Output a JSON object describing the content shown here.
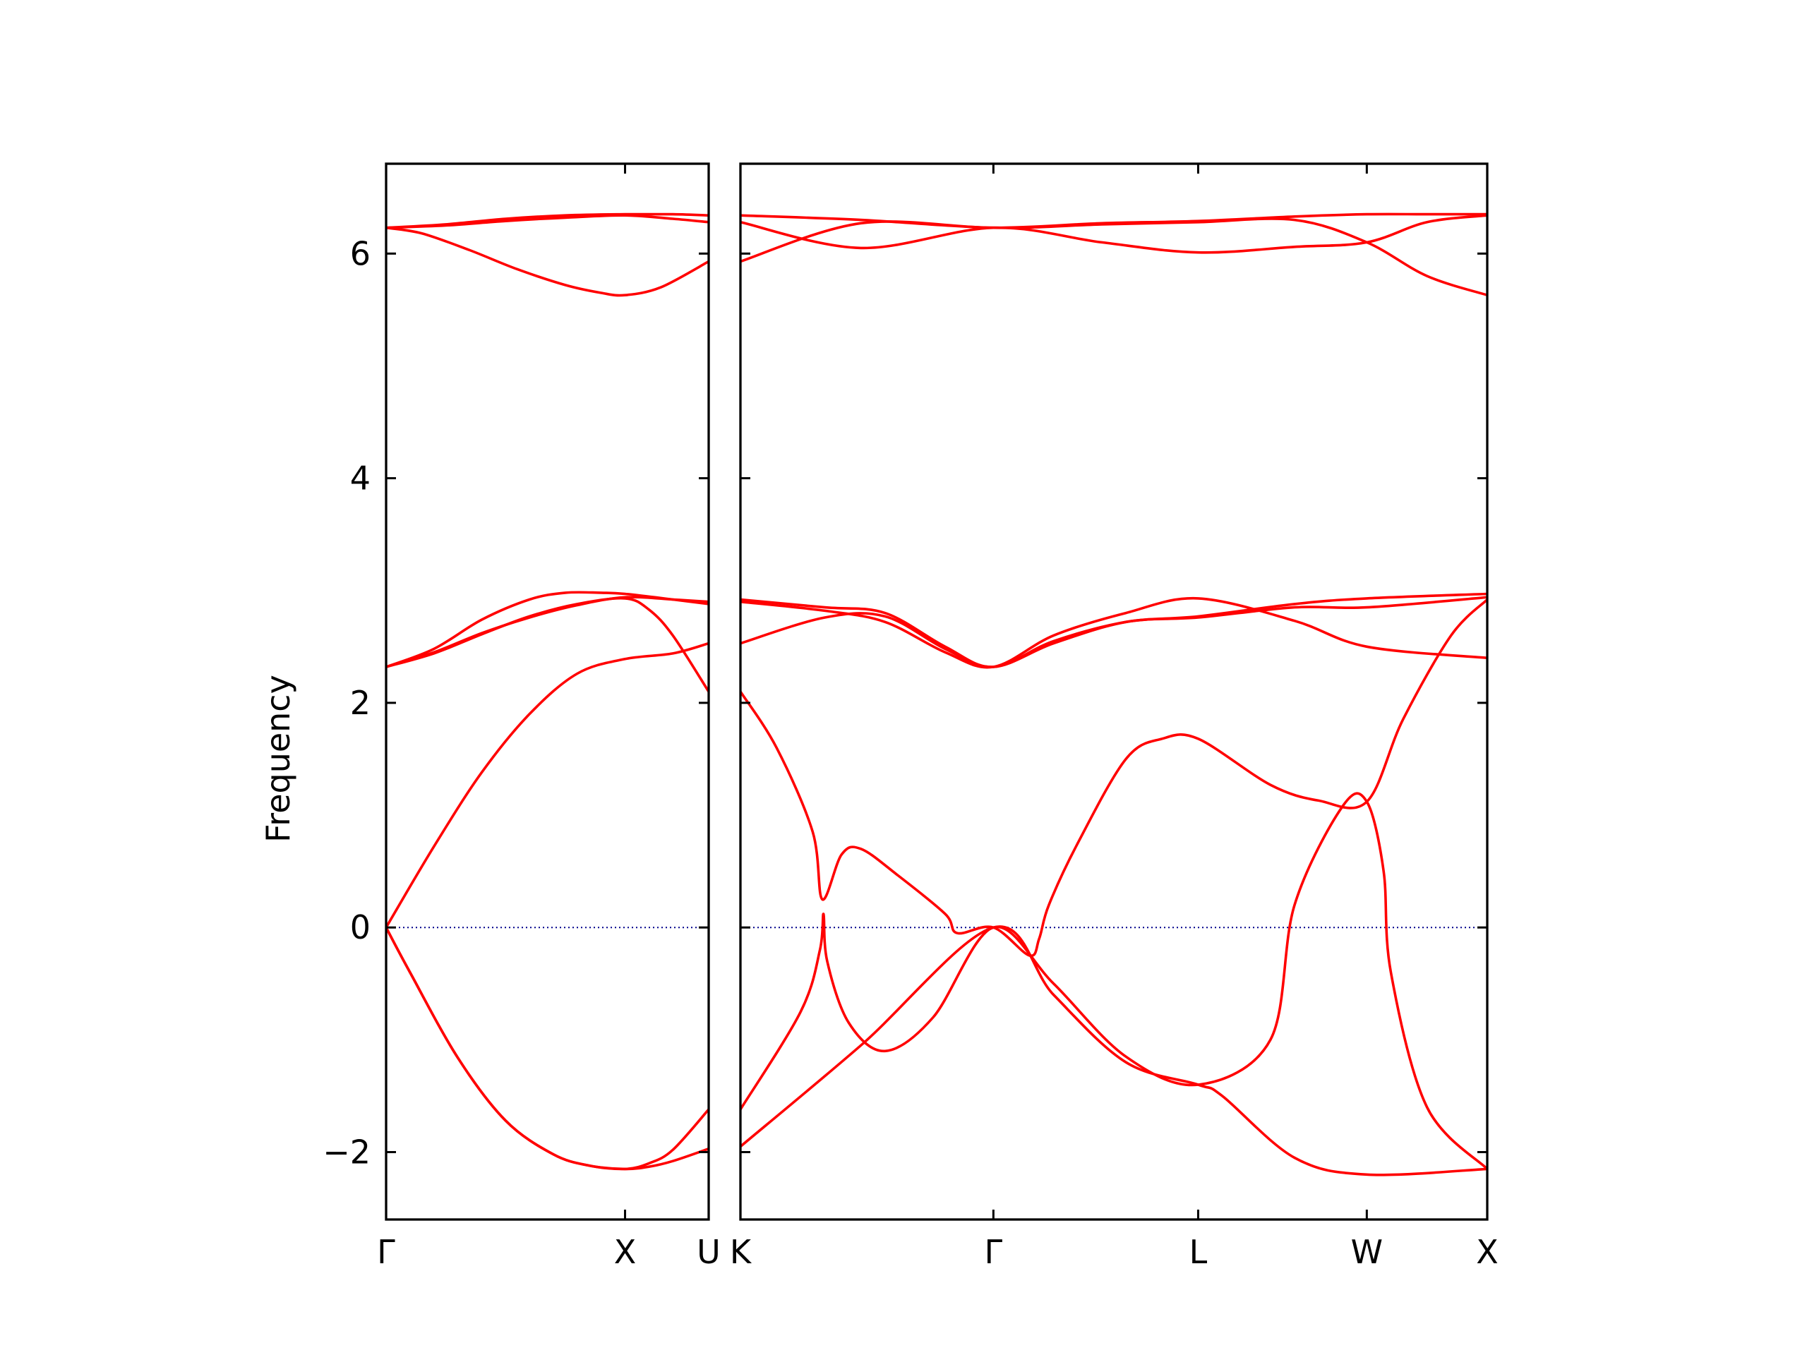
{
  "chart_data": {
    "type": "line",
    "ylabel": "Frequency",
    "ylim": [
      -2.6,
      6.8
    ],
    "yticks": [
      -2,
      0,
      2,
      4,
      6
    ],
    "ytick_labels": [
      "−2",
      "0",
      "2",
      "4",
      "6"
    ],
    "grid": false,
    "colors": {
      "bands": "#ff0000",
      "zero_line": "#00008b",
      "axes": "#000000"
    },
    "panels": [
      {
        "name": "panel-1",
        "xlim": [
          0,
          1.35
        ],
        "xticks": [
          {
            "x": 0,
            "label": "Γ"
          },
          {
            "x": 1.0,
            "label": "X"
          },
          {
            "x": 1.35,
            "label": "U"
          }
        ],
        "series": [
          {
            "values": [
              [
                0,
                6.23
              ],
              [
                0.25,
                6.26
              ],
              [
                0.5,
                6.31
              ],
              [
                0.75,
                6.34
              ],
              [
                1.0,
                6.35
              ],
              [
                1.2,
                6.35
              ],
              [
                1.35,
                6.34
              ]
            ]
          },
          {
            "values": [
              [
                0,
                6.23
              ],
              [
                0.25,
                6.25
              ],
              [
                0.5,
                6.29
              ],
              [
                0.75,
                6.32
              ],
              [
                1.0,
                6.34
              ],
              [
                1.2,
                6.31
              ],
              [
                1.35,
                6.28
              ]
            ]
          },
          {
            "values": [
              [
                0,
                6.23
              ],
              [
                0.15,
                6.18
              ],
              [
                0.35,
                6.03
              ],
              [
                0.55,
                5.86
              ],
              [
                0.75,
                5.72
              ],
              [
                0.9,
                5.65
              ],
              [
                1.0,
                5.63
              ],
              [
                1.15,
                5.7
              ],
              [
                1.35,
                5.93
              ]
            ]
          },
          {
            "values": [
              [
                0,
                2.32
              ],
              [
                0.2,
                2.48
              ],
              [
                0.4,
                2.74
              ],
              [
                0.6,
                2.92
              ],
              [
                0.75,
                2.98
              ],
              [
                0.9,
                2.98
              ],
              [
                1.0,
                2.97
              ],
              [
                1.2,
                2.92
              ],
              [
                1.35,
                2.88
              ]
            ]
          },
          {
            "values": [
              [
                0,
                2.32
              ],
              [
                0.2,
                2.45
              ],
              [
                0.4,
                2.62
              ],
              [
                0.6,
                2.76
              ],
              [
                0.8,
                2.87
              ],
              [
                1.0,
                2.94
              ],
              [
                1.2,
                2.92
              ],
              [
                1.35,
                2.9
              ]
            ]
          },
          {
            "values": [
              [
                0,
                2.32
              ],
              [
                0.2,
                2.44
              ],
              [
                0.4,
                2.61
              ],
              [
                0.6,
                2.77
              ],
              [
                0.8,
                2.88
              ],
              [
                1.0,
                2.93
              ],
              [
                1.1,
                2.83
              ],
              [
                1.2,
                2.6
              ],
              [
                1.35,
                2.1
              ]
            ]
          },
          {
            "values": [
              [
                0,
                0
              ],
              [
                0.2,
                0.72
              ],
              [
                0.4,
                1.38
              ],
              [
                0.6,
                1.9
              ],
              [
                0.8,
                2.26
              ],
              [
                1.0,
                2.39
              ],
              [
                1.2,
                2.44
              ],
              [
                1.35,
                2.53
              ]
            ]
          },
          {
            "values": [
              [
                0,
                0
              ],
              [
                0.1,
                -0.4
              ],
              [
                0.3,
                -1.16
              ],
              [
                0.5,
                -1.72
              ],
              [
                0.7,
                -2.02
              ],
              [
                0.85,
                -2.12
              ],
              [
                1.0,
                -2.15
              ],
              [
                1.1,
                -2.13
              ],
              [
                1.2,
                -2.08
              ],
              [
                1.35,
                -1.97
              ]
            ]
          },
          {
            "values": [
              [
                0,
                0
              ],
              [
                0.1,
                -0.4
              ],
              [
                0.3,
                -1.16
              ],
              [
                0.5,
                -1.72
              ],
              [
                0.7,
                -2.02
              ],
              [
                0.85,
                -2.12
              ],
              [
                1.0,
                -2.15
              ],
              [
                1.1,
                -2.1
              ],
              [
                1.2,
                -1.98
              ],
              [
                1.35,
                -1.62
              ]
            ]
          }
        ]
      },
      {
        "name": "panel-2",
        "xlim": [
          0,
          3.1
        ],
        "xticks": [
          {
            "x": 0,
            "label": "K"
          },
          {
            "x": 1.05,
            "label": "Γ"
          },
          {
            "x": 1.9,
            "label": "L"
          },
          {
            "x": 2.6,
            "label": "W"
          },
          {
            "x": 3.1,
            "label": "X"
          }
        ],
        "series": [
          {
            "values": [
              [
                0,
                6.34
              ],
              [
                0.5,
                6.3
              ],
              [
                1.05,
                6.23
              ],
              [
                1.5,
                6.26
              ],
              [
                1.9,
                6.28
              ],
              [
                2.3,
                6.3
              ],
              [
                2.6,
                6.1
              ],
              [
                2.85,
                5.8
              ],
              [
                3.1,
                5.63
              ]
            ]
          },
          {
            "values": [
              [
                0,
                6.28
              ],
              [
                0.5,
                6.05
              ],
              [
                1.05,
                6.23
              ],
              [
                1.5,
                6.1
              ],
              [
                1.9,
                6.01
              ],
              [
                2.3,
                6.06
              ],
              [
                2.6,
                6.1
              ],
              [
                2.85,
                6.28
              ],
              [
                3.1,
                6.34
              ]
            ]
          },
          {
            "values": [
              [
                0,
                5.93
              ],
              [
                0.5,
                6.27
              ],
              [
                1.05,
                6.23
              ],
              [
                1.5,
                6.27
              ],
              [
                1.9,
                6.29
              ],
              [
                2.3,
                6.33
              ],
              [
                2.6,
                6.35
              ],
              [
                2.85,
                6.35
              ],
              [
                3.1,
                6.35
              ]
            ]
          },
          {
            "values": [
              [
                0,
                2.53
              ],
              [
                0.35,
                2.76
              ],
              [
                0.6,
                2.77
              ],
              [
                0.85,
                2.48
              ],
              [
                1.05,
                2.32
              ],
              [
                1.3,
                2.53
              ],
              [
                1.6,
                2.72
              ],
              [
                1.9,
                2.76
              ],
              [
                2.3,
                2.85
              ],
              [
                2.6,
                2.85
              ],
              [
                3.1,
                2.94
              ]
            ]
          },
          {
            "values": [
              [
                0,
                2.9
              ],
              [
                0.35,
                2.82
              ],
              [
                0.6,
                2.72
              ],
              [
                0.85,
                2.45
              ],
              [
                1.05,
                2.32
              ],
              [
                1.3,
                2.6
              ],
              [
                1.6,
                2.8
              ],
              [
                1.9,
                2.93
              ],
              [
                2.3,
                2.73
              ],
              [
                2.6,
                2.5
              ],
              [
                3.1,
                2.4
              ]
            ]
          },
          {
            "values": [
              [
                0,
                2.92
              ],
              [
                0.35,
                2.85
              ],
              [
                0.6,
                2.8
              ],
              [
                0.85,
                2.5
              ],
              [
                1.05,
                2.32
              ],
              [
                1.3,
                2.55
              ],
              [
                1.6,
                2.72
              ],
              [
                1.9,
                2.77
              ],
              [
                2.3,
                2.88
              ],
              [
                2.6,
                2.93
              ],
              [
                3.1,
                2.97
              ]
            ]
          },
          {
            "values": [
              [
                0,
                2.1
              ],
              [
                0.15,
                1.6
              ],
              [
                0.3,
                0.85
              ],
              [
                0.34,
                0.25
              ],
              [
                0.42,
                0.65
              ],
              [
                0.5,
                0.7
              ],
              [
                0.65,
                0.47
              ],
              [
                0.85,
                0.12
              ],
              [
                0.9,
                -0.05
              ],
              [
                1.05,
                0.0
              ],
              [
                1.2,
                -0.25
              ],
              [
                1.24,
                -0.1
              ],
              [
                1.28,
                0.2
              ],
              [
                1.4,
                0.75
              ],
              [
                1.6,
                1.5
              ],
              [
                1.75,
                1.68
              ],
              [
                1.9,
                1.68
              ],
              [
                2.2,
                1.27
              ],
              [
                2.4,
                1.13
              ],
              [
                2.6,
                1.12
              ],
              [
                2.75,
                1.85
              ],
              [
                2.95,
                2.6
              ],
              [
                3.1,
                2.92
              ]
            ]
          },
          {
            "values": [
              [
                0,
                -1.95
              ],
              [
                0.5,
                -1.05
              ],
              [
                1.05,
                0.0
              ],
              [
                1.3,
                -0.6
              ],
              [
                1.6,
                -1.2
              ],
              [
                1.9,
                -1.4
              ],
              [
                2.0,
                -1.5
              ],
              [
                2.3,
                -2.05
              ],
              [
                2.6,
                -2.2
              ],
              [
                3.1,
                -2.15
              ]
            ]
          },
          {
            "values": [
              [
                0,
                -1.62
              ],
              [
                0.25,
                -0.75
              ],
              [
                0.33,
                -0.2
              ],
              [
                0.345,
                0.12
              ],
              [
                0.36,
                -0.3
              ],
              [
                0.45,
                -0.85
              ],
              [
                0.6,
                -1.1
              ],
              [
                0.8,
                -0.8
              ],
              [
                1.05,
                0.0
              ],
              [
                1.3,
                -0.5
              ],
              [
                1.6,
                -1.15
              ],
              [
                1.9,
                -1.4
              ],
              [
                2.2,
                -1.0
              ],
              [
                2.3,
                0.2
              ],
              [
                2.5,
                1.08
              ],
              [
                2.6,
                1.12
              ],
              [
                2.67,
                0.5
              ],
              [
                2.7,
                -0.4
              ],
              [
                2.85,
                -1.6
              ],
              [
                3.1,
                -2.15
              ]
            ]
          }
        ]
      }
    ]
  }
}
